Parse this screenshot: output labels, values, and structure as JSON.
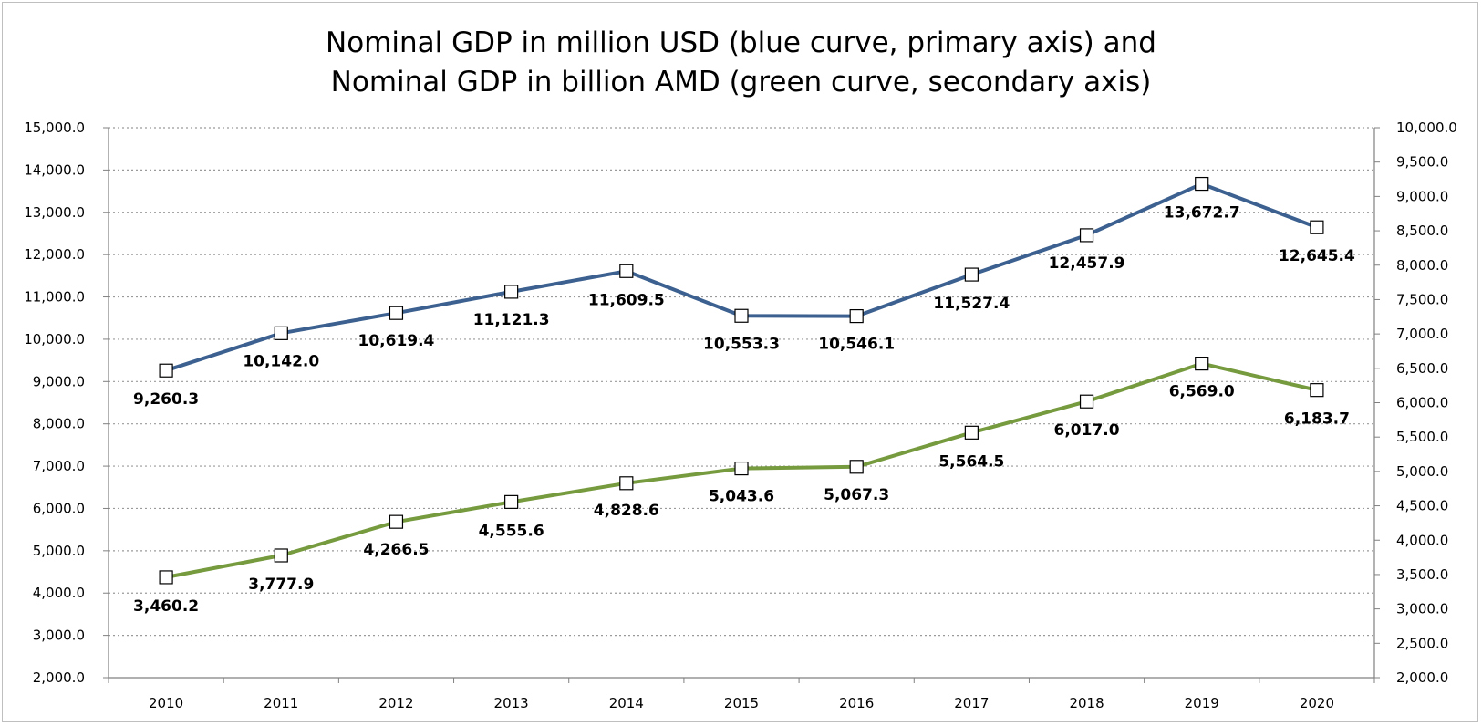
{
  "chart_data": {
    "type": "line",
    "title_line1": "Nominal GDP in million USD (blue curve, primary axis) and",
    "title_line2": "Nominal GDP in billion AMD (green curve, secondary axis)",
    "categories": [
      "2010",
      "2011",
      "2012",
      "2013",
      "2014",
      "2015",
      "2016",
      "2017",
      "2018",
      "2019",
      "2020"
    ],
    "series": [
      {
        "axis": "primary",
        "color": "#3c6190",
        "values": [
          9260.3,
          10142.0,
          10619.4,
          11121.3,
          11609.5,
          10553.3,
          10546.1,
          11527.4,
          12457.9,
          13672.7,
          12645.4
        ],
        "labels": [
          "9,260.3",
          "10,142.0",
          "10,619.4",
          "11,121.3",
          "11,609.5",
          "10,553.3",
          "10,546.1",
          "11,527.4",
          "12,457.9",
          "13,672.7",
          "12,645.4"
        ]
      },
      {
        "axis": "secondary",
        "color": "#769a3e",
        "values": [
          3460.2,
          3777.9,
          4266.5,
          4555.6,
          4828.6,
          5043.6,
          5067.3,
          5564.5,
          6017.0,
          6569.0,
          6183.7
        ],
        "labels": [
          "3,460.2",
          "3,777.9",
          "4,266.5",
          "4,555.6",
          "4,828.6",
          "5,043.6",
          "5,067.3",
          "5,564.5",
          "6,017.0",
          "6,569.0",
          "6,183.7"
        ]
      }
    ],
    "y_primary": {
      "range": [
        2000,
        15000
      ],
      "ticks": [
        "2,000.0",
        "3,000.0",
        "4,000.0",
        "5,000.0",
        "6,000.0",
        "7,000.0",
        "8,000.0",
        "9,000.0",
        "10,000.0",
        "11,000.0",
        "12,000.0",
        "13,000.0",
        "14,000.0",
        "15,000.0"
      ]
    },
    "y_secondary": {
      "range": [
        2000,
        10000
      ],
      "ticks": [
        "2,000.0",
        "2,500.0",
        "3,000.0",
        "3,500.0",
        "4,000.0",
        "4,500.0",
        "5,000.0",
        "5,500.0",
        "6,000.0",
        "6,500.0",
        "7,000.0",
        "7,500.0",
        "8,000.0",
        "8,500.0",
        "9,000.0",
        "9,500.0",
        "10,000.0"
      ]
    },
    "grid": true,
    "marker": "open-square"
  }
}
